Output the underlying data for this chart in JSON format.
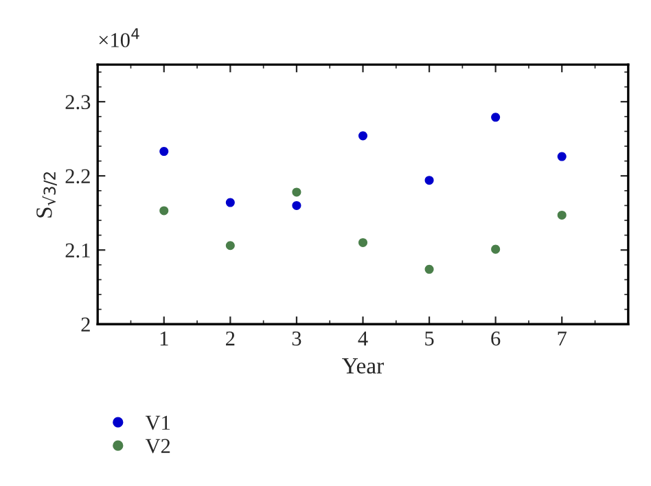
{
  "chart_data": {
    "type": "scatter",
    "xlabel": "Year",
    "ylabel": "S$_{√3/2}$",
    "x": [
      1,
      2,
      3,
      4,
      5,
      6,
      7
    ],
    "series": [
      {
        "name": "V1",
        "color": "#0000cc",
        "values": [
          2.233,
          2.164,
          2.16,
          2.254,
          2.194,
          2.279,
          2.226
        ]
      },
      {
        "name": "V2",
        "color": "#4a7f4a",
        "values": [
          2.153,
          2.106,
          2.178,
          2.11,
          2.074,
          2.101,
          2.147
        ]
      }
    ],
    "xlim": [
      0,
      8
    ],
    "xticks": [
      1,
      2,
      3,
      4,
      5,
      6,
      7
    ],
    "ylim": [
      2,
      2.35
    ],
    "yticks": [
      2,
      2.1,
      2.2,
      2.3
    ],
    "annotations": [
      "×10$^{4}$"
    ],
    "marker": "circle",
    "grid": false,
    "legend": "bottom left"
  }
}
